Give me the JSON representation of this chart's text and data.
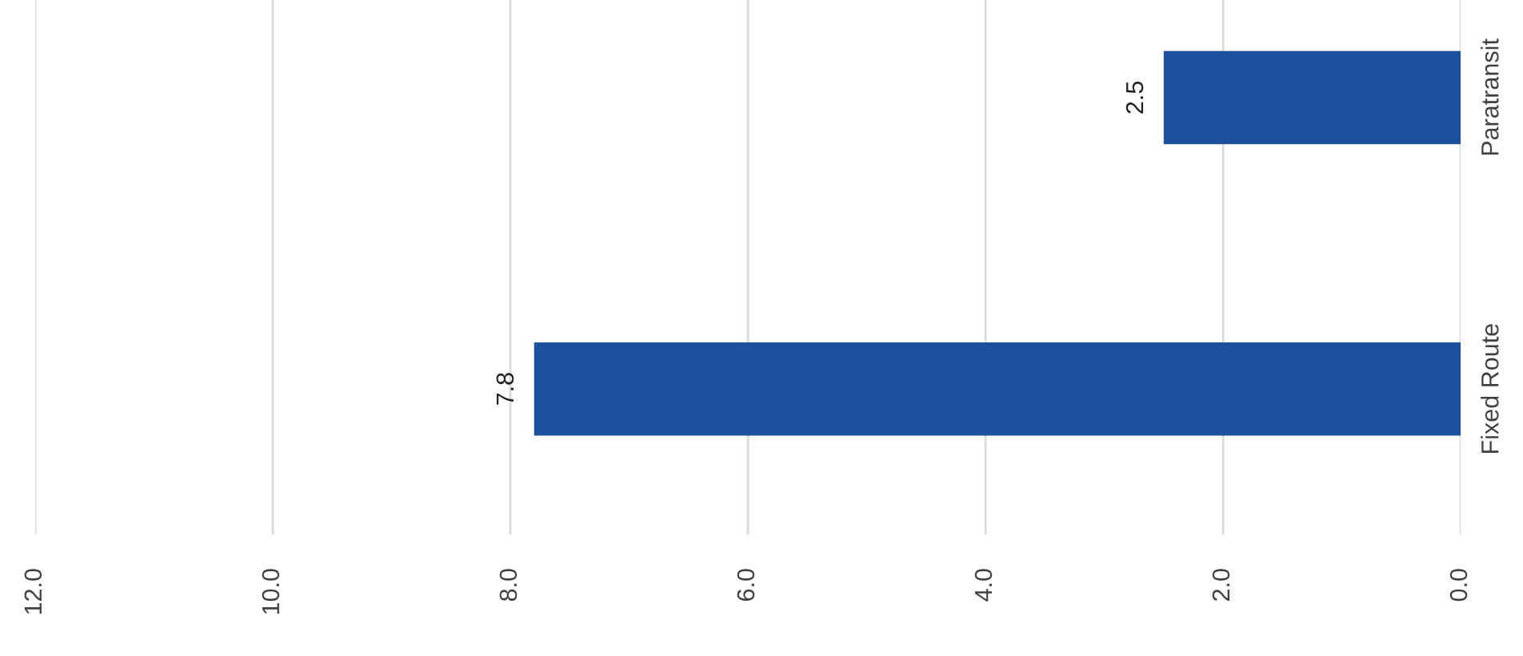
{
  "chart_data": {
    "type": "bar",
    "orientation": "horizontal",
    "categories": [
      "Paratransit",
      "Fixed Route"
    ],
    "values": [
      2.5,
      7.8
    ],
    "color": "#1c4f9c",
    "xlim": [
      12,
      0
    ],
    "xticks": [
      {
        "value": 12,
        "label": "12.0"
      },
      {
        "value": 10,
        "label": "10.0"
      },
      {
        "value": 8,
        "label": "8.0"
      },
      {
        "value": 6,
        "label": "6.0"
      },
      {
        "value": 4,
        "label": "4.0"
      },
      {
        "value": 2,
        "label": "2.0"
      },
      {
        "value": 0,
        "label": "0.0"
      }
    ],
    "grid": "x",
    "data_labels": true
  }
}
